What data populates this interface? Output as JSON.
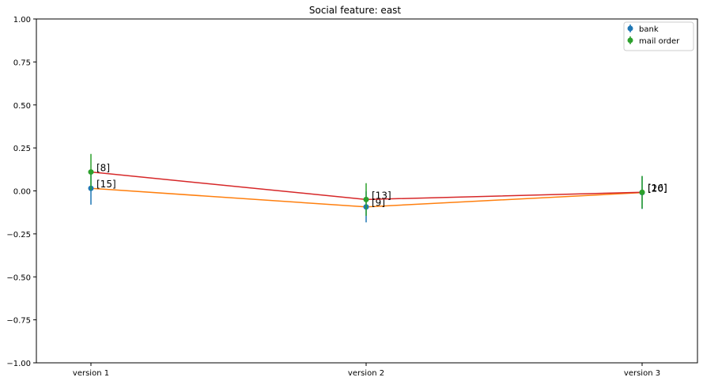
{
  "chart_data": {
    "type": "line",
    "title": "Social feature: east",
    "xlabel": "",
    "ylabel": "",
    "categories": [
      "version 1",
      "version 2",
      "version 3"
    ],
    "ylim": [
      -1.0,
      1.0
    ],
    "yticks": [
      "−1.00",
      "−0.75",
      "−0.50",
      "−0.25",
      "0.00",
      "0.25",
      "0.50",
      "0.75",
      "1.00"
    ],
    "ytick_values": [
      -1.0,
      -0.75,
      -0.5,
      -0.25,
      0.0,
      0.25,
      0.5,
      0.75,
      1.0
    ],
    "legend_position": "top-right",
    "series": [
      {
        "name": "bank",
        "marker_color": "#1f77b4",
        "line_color": "#ff7f0e",
        "values": [
          0.015,
          -0.093,
          -0.01
        ],
        "err": [
          0.095,
          0.09,
          0.095
        ],
        "labels": [
          "[15]",
          "[9]",
          "[20]"
        ]
      },
      {
        "name": "mail order",
        "marker_color": "#2ca02c",
        "line_color": "#d62728",
        "values": [
          0.11,
          -0.05,
          -0.008
        ],
        "err": [
          0.105,
          0.095,
          0.095
        ],
        "labels": [
          "[8]",
          "[13]",
          "[16]"
        ]
      }
    ]
  }
}
